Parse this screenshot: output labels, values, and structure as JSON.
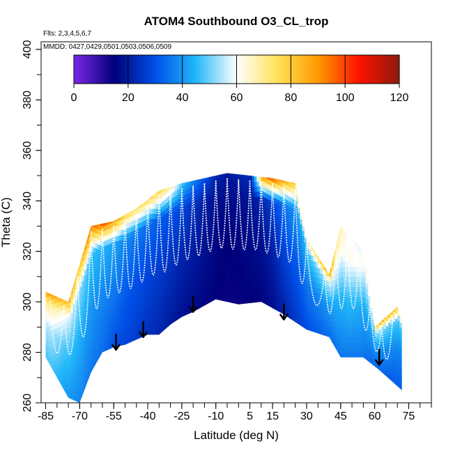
{
  "chart_data": {
    "type": "heatmap",
    "title": "ATOM4 Southbound O3_CL_trop",
    "subtitle_flights": "Flts: 2,3,4,5,6,7",
    "subtitle_dates": "MMDD: 0427,0429,0501,0503,0506,0509",
    "xlabel": "Latitude (deg N)",
    "ylabel": "Theta (C)",
    "xlim": [
      -87,
      85
    ],
    "ylim": [
      260,
      403
    ],
    "x_ticks": [
      -85,
      -70,
      -55,
      -40,
      -25,
      -10,
      5,
      15,
      30,
      45,
      60,
      75
    ],
    "x_tick_labels": [
      "-85",
      "-70",
      "-55",
      "-40",
      "-25",
      "-10",
      "5",
      "15",
      "30",
      "45",
      "60",
      "75"
    ],
    "y_ticks": [
      260,
      280,
      300,
      320,
      340,
      360,
      380,
      400
    ],
    "y_tick_labels": [
      "260",
      "280",
      "300",
      "320",
      "340",
      "360",
      "380",
      "400"
    ],
    "colorbar": {
      "min": 0,
      "max": 120,
      "ticks": [
        0,
        20,
        40,
        60,
        80,
        100,
        120
      ],
      "tick_labels": [
        "0",
        "20",
        "40",
        "60",
        "80",
        "100",
        "120"
      ],
      "colors": [
        "#7a28e8",
        "#00007a",
        "#0050e8",
        "#22b8f8",
        "#ffffff",
        "#ffe25a",
        "#ff9a00",
        "#ff1200",
        "#8c1a0c"
      ]
    },
    "ground_bottom": [
      [
        -85,
        278
      ],
      [
        -80,
        270
      ],
      [
        -75,
        262
      ],
      [
        -70,
        260
      ],
      [
        -65,
        272
      ],
      [
        -60,
        280
      ],
      [
        -55,
        282
      ],
      [
        -50,
        283
      ],
      [
        -45,
        285
      ],
      [
        -40,
        287
      ],
      [
        -35,
        287
      ],
      [
        -30,
        291
      ],
      [
        -25,
        294
      ],
      [
        -20,
        296
      ],
      [
        -10,
        301
      ],
      [
        0,
        299
      ],
      [
        10,
        300
      ],
      [
        20,
        295
      ],
      [
        30,
        289
      ],
      [
        40,
        286
      ],
      [
        45,
        278
      ],
      [
        55,
        278
      ],
      [
        62,
        273
      ],
      [
        72,
        265
      ]
    ],
    "tropopause_top": [
      [
        -85,
        304
      ],
      [
        -75,
        300
      ],
      [
        -65,
        330
      ],
      [
        -55,
        332
      ],
      [
        -45,
        337
      ],
      [
        -35,
        344
      ],
      [
        -25,
        347
      ],
      [
        -15,
        349
      ],
      [
        -5,
        351
      ],
      [
        5,
        350
      ],
      [
        15,
        349
      ],
      [
        25,
        347
      ],
      [
        30,
        325
      ],
      [
        40,
        311
      ],
      [
        45,
        330
      ],
      [
        55,
        320
      ],
      [
        60,
        290
      ],
      [
        70,
        298
      ],
      [
        72,
        292
      ]
    ],
    "profile_lats": [
      -83,
      -77,
      -71,
      -65,
      -60,
      -55,
      -50,
      -45,
      -40,
      -35,
      -30,
      -25,
      -20,
      -15,
      -10,
      -5,
      0,
      5,
      10,
      15,
      20,
      25,
      30,
      38,
      43,
      48,
      53,
      58,
      63,
      68
    ],
    "profile_values": [
      [
        48,
        55,
        70,
        92
      ],
      [
        42,
        48,
        60,
        88
      ],
      [
        38,
        44,
        52,
        80
      ],
      [
        36,
        40,
        46,
        96
      ],
      [
        34,
        38,
        44,
        102
      ],
      [
        30,
        36,
        42,
        90
      ],
      [
        28,
        32,
        38,
        80
      ],
      [
        26,
        30,
        36,
        76
      ],
      [
        24,
        28,
        34,
        78
      ],
      [
        22,
        26,
        32,
        80
      ],
      [
        20,
        24,
        30,
        70
      ],
      [
        18,
        22,
        28,
        48
      ],
      [
        17,
        20,
        24,
        38
      ],
      [
        16,
        18,
        20,
        30
      ],
      [
        15,
        16,
        18,
        22
      ],
      [
        14,
        15,
        17,
        20
      ],
      [
        14,
        16,
        18,
        22
      ],
      [
        15,
        17,
        19,
        24
      ],
      [
        16,
        18,
        22,
        96
      ],
      [
        18,
        22,
        28,
        104
      ],
      [
        22,
        28,
        36,
        90
      ],
      [
        26,
        32,
        40,
        84
      ],
      [
        30,
        36,
        46,
        70
      ],
      [
        34,
        40,
        55,
        96
      ],
      [
        36,
        44,
        60,
        70
      ],
      [
        36,
        46,
        62,
        60
      ],
      [
        36,
        44,
        60,
        58
      ],
      [
        34,
        42,
        56,
        80
      ],
      [
        34,
        40,
        52,
        88
      ],
      [
        32,
        38,
        48,
        84
      ]
    ],
    "arrows": [
      [
        -54,
        281
      ],
      [
        -42,
        286
      ],
      [
        -20,
        296
      ],
      [
        20,
        293
      ],
      [
        62,
        275
      ]
    ]
  }
}
